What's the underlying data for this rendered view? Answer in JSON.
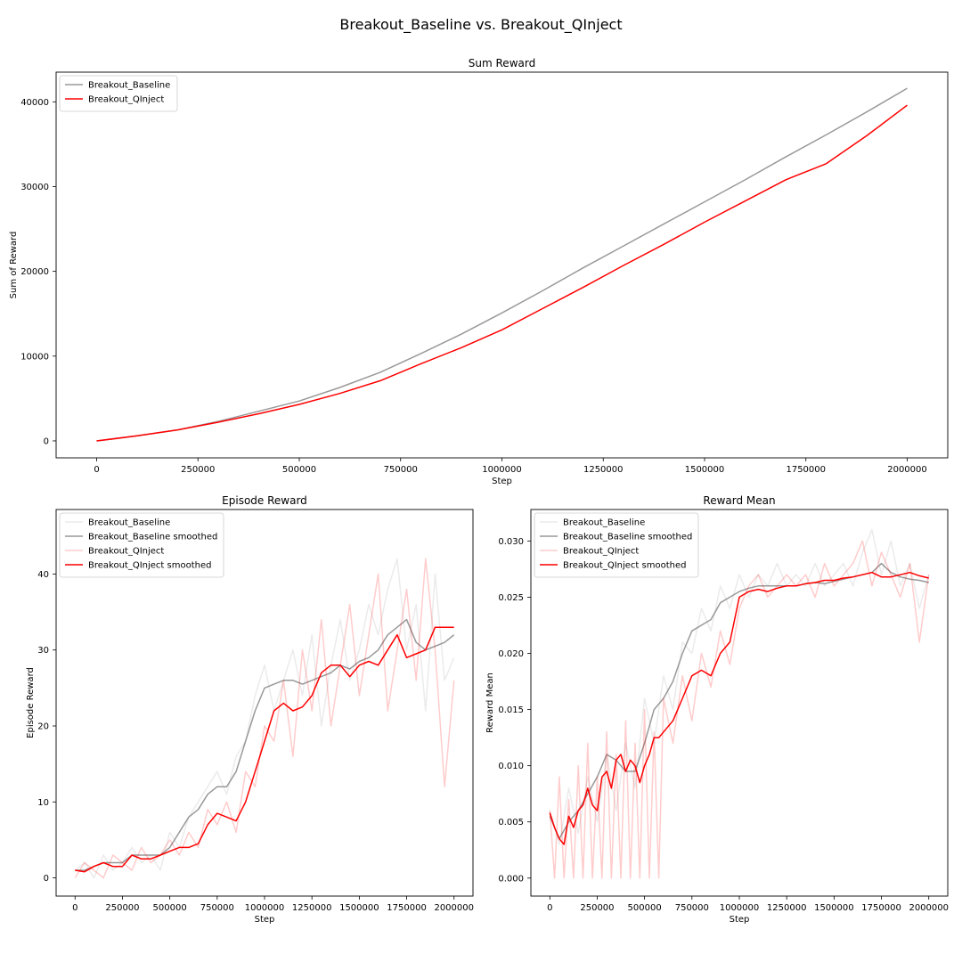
{
  "figure": {
    "suptitle": "Breakout_Baseline vs. Breakout_QInject"
  },
  "chart_data": [
    {
      "id": "sum",
      "type": "line",
      "title": "Sum Reward",
      "xlabel": "Step",
      "ylabel": "Sum of Reward",
      "xlim": [
        -100000,
        2100000
      ],
      "ylim": [
        -2000,
        43500
      ],
      "xticks": [
        0,
        250000,
        500000,
        750000,
        1000000,
        1250000,
        1500000,
        1750000,
        2000000
      ],
      "yticks": [
        0,
        10000,
        20000,
        30000,
        40000
      ],
      "legend_position": "top-left",
      "series": [
        {
          "name": "Breakout_Baseline",
          "color": "#999999",
          "alpha": 1,
          "x": [
            0,
            100000,
            200000,
            300000,
            400000,
            500000,
            600000,
            700000,
            800000,
            900000,
            1000000,
            1100000,
            1200000,
            1300000,
            1400000,
            1500000,
            1600000,
            1700000,
            1800000,
            1900000,
            2000000
          ],
          "y": [
            0,
            600,
            1300,
            2300,
            3500,
            4700,
            6300,
            8100,
            10300,
            12600,
            15100,
            17700,
            20400,
            23000,
            25600,
            28200,
            30800,
            33500,
            36100,
            38800,
            41600
          ]
        },
        {
          "name": "Breakout_QInject",
          "color": "#ff0000",
          "alpha": 1,
          "x": [
            0,
            100000,
            200000,
            300000,
            400000,
            500000,
            600000,
            700000,
            800000,
            900000,
            1000000,
            1100000,
            1200000,
            1300000,
            1400000,
            1500000,
            1600000,
            1700000,
            1800000,
            1900000,
            2000000
          ],
          "y": [
            0,
            600,
            1300,
            2200,
            3200,
            4300,
            5600,
            7100,
            9100,
            11000,
            13100,
            15600,
            18100,
            20700,
            23200,
            25800,
            28300,
            30800,
            32700,
            36000,
            39600
          ]
        }
      ]
    },
    {
      "id": "episode",
      "type": "line",
      "title": "Episode Reward",
      "xlabel": "Step",
      "ylabel": "Episode Reward",
      "xlim": [
        -100000,
        2100000
      ],
      "ylim": [
        -2.4,
        48.5
      ],
      "xticks": [
        0,
        250000,
        500000,
        750000,
        1000000,
        1250000,
        1500000,
        1750000,
        2000000
      ],
      "yticks": [
        0,
        10,
        20,
        30,
        40
      ],
      "legend_position": "top-left",
      "series": [
        {
          "name": "Breakout_Baseline",
          "color": "#999999",
          "alpha": 0.2,
          "x": [
            0,
            50000,
            100000,
            150000,
            200000,
            250000,
            300000,
            350000,
            400000,
            450000,
            500000,
            550000,
            600000,
            650000,
            700000,
            750000,
            800000,
            850000,
            900000,
            950000,
            1000000,
            1050000,
            1100000,
            1150000,
            1200000,
            1250000,
            1300000,
            1350000,
            1400000,
            1450000,
            1500000,
            1550000,
            1600000,
            1650000,
            1700000,
            1750000,
            1800000,
            1850000,
            1900000,
            1950000,
            2000000
          ],
          "y": [
            1,
            2,
            0,
            3,
            1,
            2,
            4,
            2,
            3,
            1,
            6,
            4,
            8,
            10,
            12,
            14,
            11,
            16,
            18,
            24,
            28,
            22,
            26,
            30,
            24,
            32,
            20,
            28,
            34,
            26,
            30,
            36,
            32,
            38,
            42,
            30,
            36,
            22,
            40,
            26,
            29
          ]
        },
        {
          "name": "Breakout_Baseline smoothed",
          "color": "#999999",
          "alpha": 1,
          "x": [
            0,
            50000,
            100000,
            150000,
            200000,
            250000,
            300000,
            350000,
            400000,
            450000,
            500000,
            550000,
            600000,
            650000,
            700000,
            750000,
            800000,
            850000,
            900000,
            950000,
            1000000,
            1050000,
            1100000,
            1150000,
            1200000,
            1250000,
            1300000,
            1350000,
            1400000,
            1450000,
            1500000,
            1550000,
            1600000,
            1650000,
            1700000,
            1750000,
            1800000,
            1850000,
            1900000,
            1950000,
            2000000
          ],
          "y": [
            1,
            1,
            1.5,
            2,
            2,
            2,
            3,
            3,
            3,
            3,
            4,
            6,
            8,
            9,
            11,
            12,
            12,
            14,
            18,
            22,
            25,
            25.5,
            26,
            26,
            25.5,
            26,
            26.5,
            27,
            28,
            27.5,
            28.5,
            29,
            30,
            32,
            33,
            34,
            31,
            30,
            30.5,
            31,
            32
          ]
        },
        {
          "name": "Breakout_QInject",
          "color": "#ff0000",
          "alpha": 0.2,
          "x": [
            0,
            50000,
            100000,
            150000,
            200000,
            250000,
            300000,
            350000,
            400000,
            450000,
            500000,
            550000,
            600000,
            650000,
            700000,
            750000,
            800000,
            850000,
            900000,
            950000,
            1000000,
            1050000,
            1100000,
            1150000,
            1200000,
            1250000,
            1300000,
            1350000,
            1400000,
            1450000,
            1500000,
            1550000,
            1600000,
            1650000,
            1700000,
            1750000,
            1800000,
            1850000,
            1900000,
            1950000,
            2000000
          ],
          "y": [
            0,
            2,
            1,
            0,
            3,
            2,
            1,
            4,
            2,
            3,
            5,
            3,
            6,
            4,
            9,
            7,
            10,
            6,
            14,
            12,
            20,
            18,
            26,
            16,
            30,
            22,
            34,
            20,
            28,
            36,
            24,
            32,
            40,
            22,
            30,
            38,
            26,
            42,
            30,
            12,
            26
          ]
        },
        {
          "name": "Breakout_QInject smoothed",
          "color": "#ff0000",
          "alpha": 1,
          "x": [
            0,
            50000,
            100000,
            150000,
            200000,
            250000,
            300000,
            350000,
            400000,
            450000,
            500000,
            550000,
            600000,
            650000,
            700000,
            750000,
            800000,
            850000,
            900000,
            950000,
            1000000,
            1050000,
            1100000,
            1150000,
            1200000,
            1250000,
            1300000,
            1350000,
            1400000,
            1450000,
            1500000,
            1550000,
            1600000,
            1650000,
            1700000,
            1750000,
            1800000,
            1850000,
            1900000,
            1950000,
            2000000
          ],
          "y": [
            1,
            0.8,
            1.5,
            2,
            1.5,
            1.5,
            3,
            2.5,
            2.5,
            3,
            3.5,
            4,
            4,
            4.5,
            7,
            8.5,
            8,
            7.5,
            10,
            14,
            18,
            22,
            23,
            22,
            22.5,
            24,
            27,
            28,
            28,
            26.5,
            28,
            28.5,
            28,
            30,
            32,
            29,
            29.5,
            30,
            33,
            33,
            33
          ]
        }
      ]
    },
    {
      "id": "mean",
      "type": "line",
      "title": "Reward Mean",
      "xlabel": "Step",
      "ylabel": "Reward Mean",
      "xlim": [
        -100000,
        2100000
      ],
      "ylim": [
        -0.0016,
        0.0328
      ],
      "xticks": [
        0,
        250000,
        500000,
        750000,
        1000000,
        1250000,
        1500000,
        1750000,
        2000000
      ],
      "yticks": [
        0.0,
        0.005,
        0.01,
        0.015,
        0.02,
        0.025,
        0.03
      ],
      "ytick_labels": [
        "0.000",
        "0.005",
        "0.010",
        "0.015",
        "0.020",
        "0.025",
        "0.030"
      ],
      "legend_position": "top-left",
      "series": [
        {
          "name": "Breakout_Baseline",
          "color": "#999999",
          "alpha": 0.2,
          "x": [
            0,
            50000,
            100000,
            150000,
            200000,
            250000,
            300000,
            350000,
            400000,
            450000,
            500000,
            550000,
            600000,
            650000,
            700000,
            750000,
            800000,
            850000,
            900000,
            950000,
            1000000,
            1050000,
            1100000,
            1150000,
            1200000,
            1250000,
            1300000,
            1350000,
            1400000,
            1450000,
            1500000,
            1550000,
            1600000,
            1650000,
            1700000,
            1750000,
            1800000,
            1850000,
            1900000,
            1950000,
            2000000
          ],
          "y": [
            0.006,
            0.003,
            0.008,
            0.004,
            0.009,
            0.005,
            0.011,
            0.006,
            0.012,
            0.008,
            0.016,
            0.012,
            0.018,
            0.015,
            0.021,
            0.02,
            0.024,
            0.022,
            0.026,
            0.024,
            0.027,
            0.025,
            0.027,
            0.026,
            0.028,
            0.026,
            0.027,
            0.026,
            0.028,
            0.026,
            0.027,
            0.028,
            0.026,
            0.029,
            0.031,
            0.027,
            0.03,
            0.026,
            0.028,
            0.024,
            0.027
          ]
        },
        {
          "name": "Breakout_Baseline smoothed",
          "color": "#999999",
          "alpha": 1,
          "x": [
            0,
            50000,
            100000,
            150000,
            200000,
            250000,
            300000,
            350000,
            400000,
            450000,
            500000,
            550000,
            600000,
            650000,
            700000,
            750000,
            800000,
            850000,
            900000,
            950000,
            1000000,
            1050000,
            1100000,
            1150000,
            1200000,
            1250000,
            1300000,
            1350000,
            1400000,
            1450000,
            1500000,
            1550000,
            1600000,
            1650000,
            1700000,
            1750000,
            1800000,
            1850000,
            1900000,
            1950000,
            2000000
          ],
          "y": [
            0.0055,
            0.0035,
            0.005,
            0.006,
            0.0075,
            0.009,
            0.011,
            0.0105,
            0.0095,
            0.0095,
            0.012,
            0.015,
            0.016,
            0.0175,
            0.02,
            0.022,
            0.0225,
            0.023,
            0.0245,
            0.025,
            0.0255,
            0.0258,
            0.026,
            0.026,
            0.026,
            0.026,
            0.026,
            0.0262,
            0.0263,
            0.0262,
            0.0264,
            0.0266,
            0.0268,
            0.027,
            0.0272,
            0.028,
            0.0272,
            0.0268,
            0.0266,
            0.0265,
            0.0263
          ]
        },
        {
          "name": "Breakout_QInject",
          "color": "#ff0000",
          "alpha": 0.2,
          "x": [
            0,
            25000,
            50000,
            75000,
            100000,
            125000,
            150000,
            175000,
            200000,
            225000,
            250000,
            275000,
            300000,
            325000,
            350000,
            375000,
            400000,
            425000,
            450000,
            475000,
            500000,
            525000,
            550000,
            575000,
            600000,
            650000,
            700000,
            750000,
            800000,
            850000,
            900000,
            950000,
            1000000,
            1050000,
            1100000,
            1150000,
            1200000,
            1250000,
            1300000,
            1350000,
            1400000,
            1450000,
            1500000,
            1550000,
            1600000,
            1650000,
            1700000,
            1750000,
            1800000,
            1850000,
            1900000,
            1950000,
            2000000
          ],
          "y": [
            0.006,
            0.0,
            0.009,
            0.0,
            0.007,
            0.0,
            0.01,
            0.0,
            0.012,
            0.0,
            0.009,
            0.0,
            0.013,
            0.0,
            0.011,
            0.0,
            0.014,
            0.0,
            0.012,
            0.0,
            0.015,
            0.0,
            0.013,
            0.0,
            0.016,
            0.012,
            0.018,
            0.014,
            0.02,
            0.017,
            0.022,
            0.019,
            0.024,
            0.026,
            0.027,
            0.025,
            0.026,
            0.027,
            0.026,
            0.027,
            0.025,
            0.028,
            0.026,
            0.027,
            0.028,
            0.03,
            0.026,
            0.029,
            0.027,
            0.025,
            0.028,
            0.021,
            0.027
          ]
        },
        {
          "name": "Breakout_QInject smoothed",
          "color": "#ff0000",
          "alpha": 1,
          "x": [
            0,
            25000,
            50000,
            75000,
            100000,
            125000,
            150000,
            175000,
            200000,
            225000,
            250000,
            275000,
            300000,
            325000,
            350000,
            375000,
            400000,
            425000,
            450000,
            475000,
            500000,
            525000,
            550000,
            575000,
            600000,
            650000,
            700000,
            750000,
            800000,
            850000,
            900000,
            950000,
            1000000,
            1050000,
            1100000,
            1150000,
            1200000,
            1250000,
            1300000,
            1350000,
            1400000,
            1450000,
            1500000,
            1550000,
            1600000,
            1650000,
            1700000,
            1750000,
            1800000,
            1850000,
            1900000,
            1950000,
            2000000
          ],
          "y": [
            0.0058,
            0.0045,
            0.0035,
            0.003,
            0.0055,
            0.0045,
            0.006,
            0.0065,
            0.008,
            0.0065,
            0.006,
            0.009,
            0.0095,
            0.008,
            0.0105,
            0.011,
            0.0095,
            0.0105,
            0.01,
            0.0085,
            0.01,
            0.011,
            0.0125,
            0.0125,
            0.013,
            0.014,
            0.016,
            0.018,
            0.0185,
            0.018,
            0.02,
            0.021,
            0.025,
            0.0255,
            0.0257,
            0.0255,
            0.0258,
            0.026,
            0.026,
            0.0262,
            0.0263,
            0.0265,
            0.0265,
            0.0267,
            0.0268,
            0.027,
            0.0272,
            0.0268,
            0.0268,
            0.027,
            0.0272,
            0.0269,
            0.0267
          ]
        }
      ]
    }
  ]
}
